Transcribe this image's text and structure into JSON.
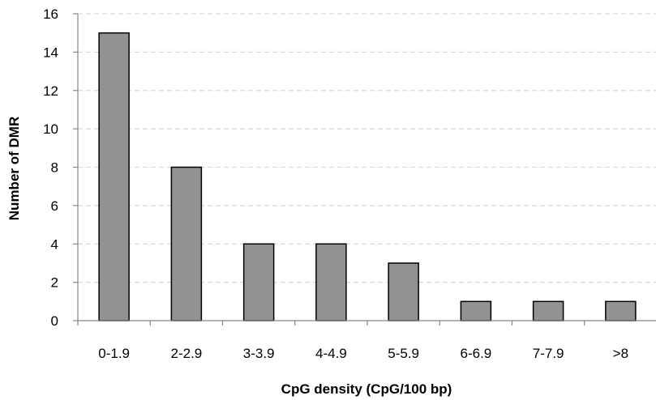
{
  "chart_data": {
    "type": "bar",
    "categories": [
      "0-1.9",
      "2-2.9",
      "3-3.9",
      "4-4.9",
      "5-5.9",
      "6-6.9",
      "7-7.9",
      ">8"
    ],
    "values": [
      15,
      8,
      4,
      4,
      3,
      1,
      1,
      1
    ],
    "title": "",
    "xlabel": "CpG  density (CpG/100 bp)",
    "ylabel": "Number of DMR",
    "ylim": [
      0,
      16
    ],
    "yticks": [
      0,
      2,
      4,
      6,
      8,
      10,
      12,
      14,
      16
    ],
    "grid": true,
    "legend": "none",
    "bar_color": "#929292",
    "bar_edge_color": "#000000",
    "grid_color": "#d9d9d9",
    "axis_color": "#868686"
  }
}
